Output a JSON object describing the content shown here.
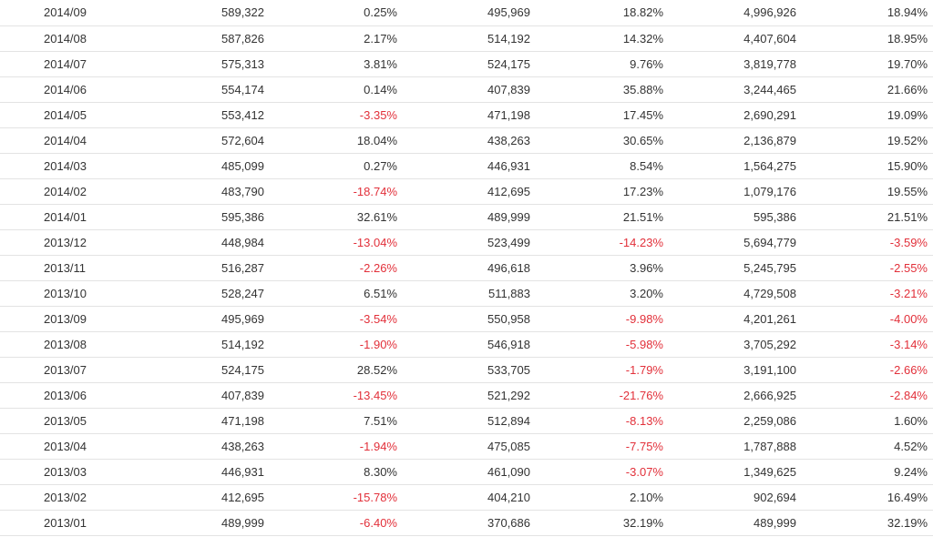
{
  "colors": {
    "text": "#333333",
    "negative": "#e2303a",
    "row_border": "#e3e3e3",
    "background": "#ffffff"
  },
  "table": {
    "rows": [
      {
        "period": "2014/09",
        "v1": "589,322",
        "p1": "0.25%",
        "v2": "495,969",
        "p2": "18.82%",
        "v3": "4,996,926",
        "p3": "18.94%"
      },
      {
        "period": "2014/08",
        "v1": "587,826",
        "p1": "2.17%",
        "v2": "514,192",
        "p2": "14.32%",
        "v3": "4,407,604",
        "p3": "18.95%"
      },
      {
        "period": "2014/07",
        "v1": "575,313",
        "p1": "3.81%",
        "v2": "524,175",
        "p2": "9.76%",
        "v3": "3,819,778",
        "p3": "19.70%"
      },
      {
        "period": "2014/06",
        "v1": "554,174",
        "p1": "0.14%",
        "v2": "407,839",
        "p2": "35.88%",
        "v3": "3,244,465",
        "p3": "21.66%"
      },
      {
        "period": "2014/05",
        "v1": "553,412",
        "p1": "-3.35%",
        "v2": "471,198",
        "p2": "17.45%",
        "v3": "2,690,291",
        "p3": "19.09%"
      },
      {
        "period": "2014/04",
        "v1": "572,604",
        "p1": "18.04%",
        "v2": "438,263",
        "p2": "30.65%",
        "v3": "2,136,879",
        "p3": "19.52%"
      },
      {
        "period": "2014/03",
        "v1": "485,099",
        "p1": "0.27%",
        "v2": "446,931",
        "p2": "8.54%",
        "v3": "1,564,275",
        "p3": "15.90%"
      },
      {
        "period": "2014/02",
        "v1": "483,790",
        "p1": "-18.74%",
        "v2": "412,695",
        "p2": "17.23%",
        "v3": "1,079,176",
        "p3": "19.55%"
      },
      {
        "period": "2014/01",
        "v1": "595,386",
        "p1": "32.61%",
        "v2": "489,999",
        "p2": "21.51%",
        "v3": "595,386",
        "p3": "21.51%"
      },
      {
        "period": "2013/12",
        "v1": "448,984",
        "p1": "-13.04%",
        "v2": "523,499",
        "p2": "-14.23%",
        "v3": "5,694,779",
        "p3": "-3.59%"
      },
      {
        "period": "2013/11",
        "v1": "516,287",
        "p1": "-2.26%",
        "v2": "496,618",
        "p2": "3.96%",
        "v3": "5,245,795",
        "p3": "-2.55%"
      },
      {
        "period": "2013/10",
        "v1": "528,247",
        "p1": "6.51%",
        "v2": "511,883",
        "p2": "3.20%",
        "v3": "4,729,508",
        "p3": "-3.21%"
      },
      {
        "period": "2013/09",
        "v1": "495,969",
        "p1": "-3.54%",
        "v2": "550,958",
        "p2": "-9.98%",
        "v3": "4,201,261",
        "p3": "-4.00%"
      },
      {
        "period": "2013/08",
        "v1": "514,192",
        "p1": "-1.90%",
        "v2": "546,918",
        "p2": "-5.98%",
        "v3": "3,705,292",
        "p3": "-3.14%"
      },
      {
        "period": "2013/07",
        "v1": "524,175",
        "p1": "28.52%",
        "v2": "533,705",
        "p2": "-1.79%",
        "v3": "3,191,100",
        "p3": "-2.66%"
      },
      {
        "period": "2013/06",
        "v1": "407,839",
        "p1": "-13.45%",
        "v2": "521,292",
        "p2": "-21.76%",
        "v3": "2,666,925",
        "p3": "-2.84%"
      },
      {
        "period": "2013/05",
        "v1": "471,198",
        "p1": "7.51%",
        "v2": "512,894",
        "p2": "-8.13%",
        "v3": "2,259,086",
        "p3": "1.60%"
      },
      {
        "period": "2013/04",
        "v1": "438,263",
        "p1": "-1.94%",
        "v2": "475,085",
        "p2": "-7.75%",
        "v3": "1,787,888",
        "p3": "4.52%"
      },
      {
        "period": "2013/03",
        "v1": "446,931",
        "p1": "8.30%",
        "v2": "461,090",
        "p2": "-3.07%",
        "v3": "1,349,625",
        "p3": "9.24%"
      },
      {
        "period": "2013/02",
        "v1": "412,695",
        "p1": "-15.78%",
        "v2": "404,210",
        "p2": "2.10%",
        "v3": "902,694",
        "p3": "16.49%"
      },
      {
        "period": "2013/01",
        "v1": "489,999",
        "p1": "-6.40%",
        "v2": "370,686",
        "p2": "32.19%",
        "v3": "489,999",
        "p3": "32.19%"
      }
    ]
  }
}
